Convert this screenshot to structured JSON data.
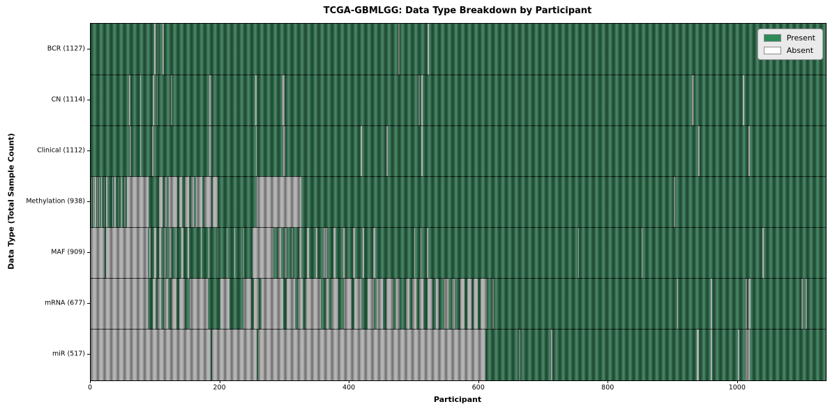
{
  "chart_data": {
    "type": "heatmap",
    "title": "TCGA-GBMLGG: Data Type Breakdown by Participant",
    "xlabel": "Participant",
    "ylabel": "Data Type (Total Sample Count)",
    "x_ticks": [
      0,
      200,
      400,
      600,
      800,
      1000
    ],
    "x_max": 1136,
    "grid": false,
    "legend": {
      "position": "upper right",
      "items": [
        {
          "label": "Present",
          "color": "#2e8b57"
        },
        {
          "label": "Absent",
          "color": "#ffffff"
        }
      ]
    },
    "colors": {
      "present_fill": "#2e6b4b",
      "absent_fill": "#a9a9a9",
      "bar_edge": "#7a7a7a",
      "axes_border": "#000000",
      "legend_bg": "#eaeaea"
    },
    "note": "Each row spans participants 0..x_max; absent = [start,end) participant ranges shown gray, all other participants present (green).",
    "rows": [
      {
        "name": "BCR",
        "count": 1127,
        "absent": [
          [
            98,
            100
          ],
          [
            103,
            105
          ],
          [
            111,
            113
          ],
          [
            475,
            477
          ],
          [
            521,
            523
          ]
        ]
      },
      {
        "name": "CN",
        "count": 1114,
        "absent": [
          [
            59,
            61
          ],
          [
            76,
            78
          ],
          [
            96,
            98
          ],
          [
            102,
            104
          ],
          [
            124,
            126
          ],
          [
            183,
            187
          ],
          [
            254,
            256
          ],
          [
            296,
            300
          ],
          [
            507,
            509
          ],
          [
            511,
            513
          ],
          [
            929,
            932
          ],
          [
            1008,
            1010
          ]
        ]
      },
      {
        "name": "Clinical",
        "count": 1112,
        "absent": [
          [
            60,
            62
          ],
          [
            76,
            78
          ],
          [
            95,
            97
          ],
          [
            183,
            187
          ],
          [
            255,
            257
          ],
          [
            297,
            301
          ],
          [
            417,
            419
          ],
          [
            457,
            459
          ],
          [
            511,
            513
          ],
          [
            939,
            941
          ],
          [
            1016,
            1018
          ]
        ]
      },
      {
        "name": "Methylation",
        "count": 938,
        "absent": [
          [
            1,
            2
          ],
          [
            4,
            5
          ],
          [
            7,
            8
          ],
          [
            10,
            11
          ],
          [
            13,
            14
          ],
          [
            16,
            17
          ],
          [
            20,
            21
          ],
          [
            24,
            25
          ],
          [
            33,
            34
          ],
          [
            37,
            38
          ],
          [
            42,
            43
          ],
          [
            47,
            48
          ],
          [
            52,
            53
          ],
          [
            56,
            90
          ],
          [
            106,
            111
          ],
          [
            114,
            118
          ],
          [
            121,
            134
          ],
          [
            137,
            141
          ],
          [
            145,
            152
          ],
          [
            155,
            160
          ],
          [
            163,
            172
          ],
          [
            176,
            186
          ],
          [
            189,
            196
          ],
          [
            257,
            325
          ],
          [
            901,
            903
          ]
        ]
      },
      {
        "name": "MAF",
        "count": 909,
        "absent": [
          [
            0,
            22
          ],
          [
            24,
            88
          ],
          [
            90,
            93
          ],
          [
            98,
            101
          ],
          [
            106,
            109
          ],
          [
            113,
            116
          ],
          [
            122,
            125
          ],
          [
            131,
            133
          ],
          [
            140,
            143
          ],
          [
            150,
            152
          ],
          [
            170,
            171
          ],
          [
            182,
            183
          ],
          [
            196,
            197
          ],
          [
            210,
            211
          ],
          [
            222,
            223
          ],
          [
            236,
            237
          ],
          [
            250,
            282
          ],
          [
            290,
            294
          ],
          [
            300,
            303
          ],
          [
            310,
            313
          ],
          [
            322,
            325
          ],
          [
            334,
            337
          ],
          [
            348,
            350
          ],
          [
            360,
            365
          ],
          [
            375,
            378
          ],
          [
            390,
            393
          ],
          [
            405,
            408
          ],
          [
            420,
            423
          ],
          [
            436,
            440
          ],
          [
            500,
            501
          ],
          [
            510,
            511
          ],
          [
            520,
            521
          ],
          [
            753,
            755
          ],
          [
            851,
            853
          ],
          [
            1038,
            1040
          ]
        ]
      },
      {
        "name": "mRNA",
        "count": 677,
        "absent": [
          [
            0,
            88
          ],
          [
            96,
            100
          ],
          [
            104,
            109
          ],
          [
            113,
            120
          ],
          [
            125,
            133
          ],
          [
            137,
            146
          ],
          [
            153,
            181
          ],
          [
            200,
            214
          ],
          [
            236,
            248
          ],
          [
            252,
            260
          ],
          [
            264,
            298
          ],
          [
            303,
            316
          ],
          [
            320,
            328
          ],
          [
            332,
            356
          ],
          [
            363,
            368
          ],
          [
            372,
            383
          ],
          [
            391,
            403
          ],
          [
            407,
            418
          ],
          [
            428,
            438
          ],
          [
            442,
            452
          ],
          [
            457,
            468
          ],
          [
            472,
            478
          ],
          [
            487,
            493
          ],
          [
            497,
            503
          ],
          [
            508,
            514
          ],
          [
            521,
            528
          ],
          [
            533,
            538
          ],
          [
            546,
            553
          ],
          [
            558,
            563
          ],
          [
            571,
            578
          ],
          [
            582,
            588
          ],
          [
            592,
            598
          ],
          [
            602,
            612
          ],
          [
            621,
            623
          ],
          [
            906,
            908
          ],
          [
            958,
            960
          ],
          [
            1012,
            1014
          ],
          [
            1016,
            1020
          ],
          [
            1098,
            1100
          ],
          [
            1105,
            1107
          ]
        ]
      },
      {
        "name": "miR",
        "count": 517,
        "absent": [
          [
            0,
            185
          ],
          [
            187,
            257
          ],
          [
            259,
            610
          ],
          [
            662,
            664
          ],
          [
            711,
            713
          ],
          [
            937,
            940
          ],
          [
            958,
            960
          ],
          [
            1000,
            1002
          ],
          [
            1012,
            1018
          ]
        ]
      }
    ]
  }
}
